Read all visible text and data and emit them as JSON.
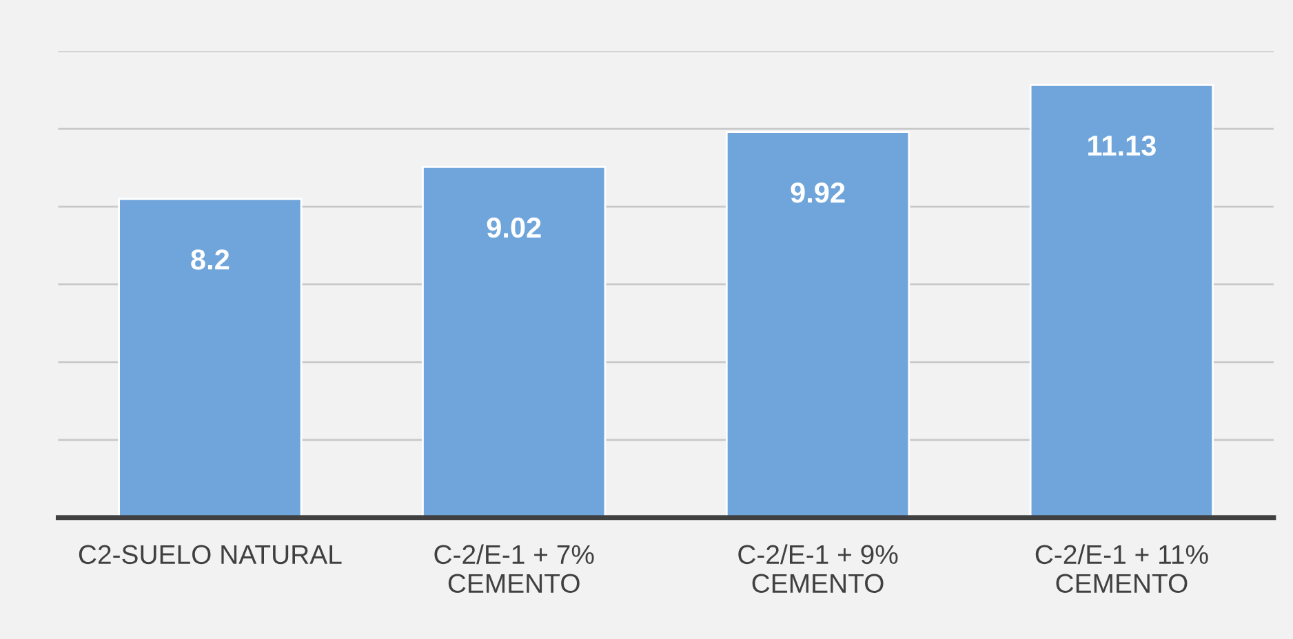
{
  "chart_data": {
    "type": "bar",
    "categories": [
      "C2-SUELO NATURAL",
      "C-2/E-1 + 7%\nCEMENTO",
      "C-2/E-1 + 9%\nCEMENTO",
      "C-2/E-1 + 11%\nCEMENTO"
    ],
    "values": [
      8.2,
      9.02,
      9.92,
      11.13
    ],
    "color": "#6fa5da",
    "ylim": [
      0,
      12
    ],
    "yticks": [
      {
        "value": 0,
        "label": null
      },
      {
        "value": 2,
        "label": null
      },
      {
        "value": 4,
        "label": null
      },
      {
        "value": 6,
        "label": null
      },
      {
        "value": 8,
        "label": null
      },
      {
        "value": 10,
        "label": null
      },
      {
        "value": 12,
        "label": null
      }
    ],
    "tick_labels": "x",
    "grid": "y",
    "data_labels": true
  }
}
